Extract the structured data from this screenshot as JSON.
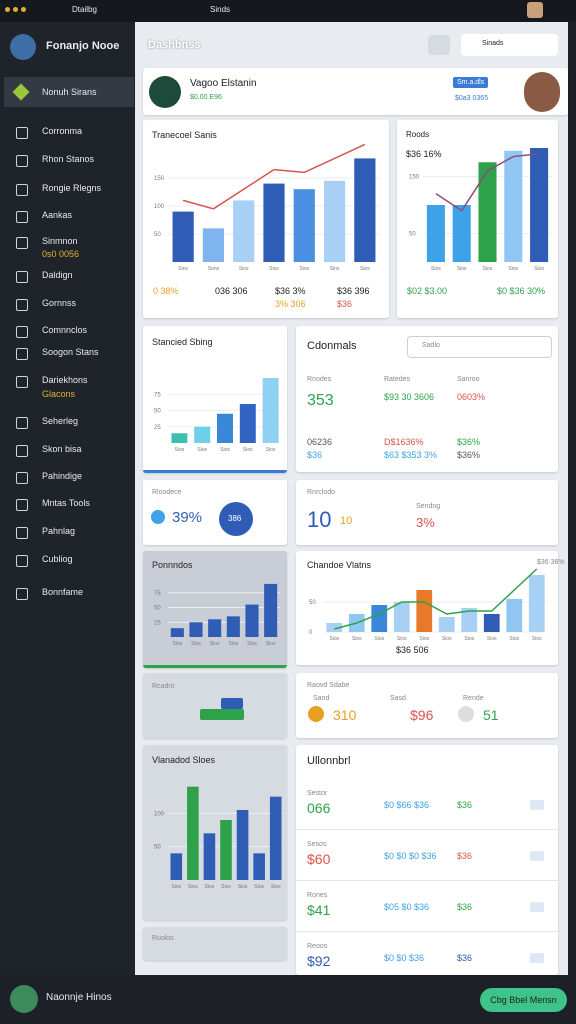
{
  "topbar": {
    "app": "Dtailbg",
    "center": "Sinds"
  },
  "sidebar": {
    "user": "Fonanjo Nooe",
    "active": "Nonuh Sirans",
    "items": [
      "Corronma",
      "Rhon Stanos",
      "Rongie Rlegns",
      "Aankas",
      "Sinmnon",
      "0s0 0056",
      "Daldign",
      "Gornnss",
      "Comnnclos",
      "Soogon Stans",
      "Dariekhons",
      "Glacons",
      "Seherleg",
      "Skon bisa",
      "Pahindige",
      "Mntas Tools",
      "Pahnlag",
      "Cubliog",
      "Bonnfame"
    ]
  },
  "header": {
    "title": "Dashbnss",
    "search": "Sinads"
  },
  "profile": {
    "name": "Vagoo Elstanin",
    "subtitle": "$0.00 E96",
    "badge": "Sm.a.dls",
    "badge2": "$0a3 0365"
  },
  "charts": [
    {
      "title": "Tranecoel Sanis",
      "ylim": [
        0,
        200
      ],
      "yticks": [
        50,
        100,
        150
      ],
      "categories": [
        "Sins",
        "Sons",
        "Sios",
        "Sins",
        "Sios",
        "Sins",
        "Sios"
      ],
      "values": [
        90,
        60,
        110,
        140,
        130,
        145,
        185
      ],
      "colors": [
        "#2f5db5",
        "#7fb4ee",
        "#a8d0f5",
        "#2f5db5",
        "#4b8fe0",
        "#a8d0f5",
        "#2f5db5"
      ],
      "line": [
        110,
        95,
        130,
        165,
        160,
        185,
        210
      ],
      "line_color": "#d9534f"
    },
    {
      "title": "Roods",
      "subtitle": "$36 16%",
      "ylim": [
        0,
        200
      ],
      "yticks": [
        50,
        150
      ],
      "categories": [
        "Sios",
        "Sios",
        "Sios",
        "Sios",
        "Sios"
      ],
      "values": [
        100,
        100,
        175,
        195,
        200
      ],
      "colors": [
        "#3ea2e8",
        "#3ea2e8",
        "#2ea24a",
        "#8fc7f2",
        "#2f5db5"
      ],
      "line": [
        120,
        90,
        160,
        185,
        190
      ],
      "line_color": "#8e4a7a"
    },
    {
      "title": "Stancied Sbing",
      "ylim": [
        0,
        100
      ],
      "yticks": [
        25,
        50,
        75
      ],
      "categories": [
        "Sios",
        "Sios",
        "Sios",
        "Sios",
        "Sios"
      ],
      "values": [
        15,
        25,
        45,
        60,
        100
      ],
      "colors": [
        "#3fbfb0",
        "#6cd1e8",
        "#3a86d8",
        "#3363c2",
        "#8fd0f5"
      ]
    },
    {
      "title": "Ponnndos",
      "ylim": [
        0,
        100
      ],
      "yticks": [
        25,
        50,
        75
      ],
      "categories": [
        "Sios",
        "Sios",
        "Sios",
        "Sios",
        "Sios",
        "Sios"
      ],
      "values": [
        15,
        25,
        30,
        35,
        55,
        90
      ],
      "colors": [
        "#2f5db5",
        "#2f5db5",
        "#2f5db5",
        "#2f5db5",
        "#2f5db5",
        "#2f5db5"
      ]
    },
    {
      "title": "Chandoe Vlatns",
      "subtitle": "$36 36%",
      "ylim": [
        0,
        100
      ],
      "yticks": [
        0,
        50
      ],
      "categories": [
        "Sios",
        "Sios",
        "Sios",
        "Sios",
        "Sios",
        "Sios",
        "Sios",
        "Sios",
        "Sios",
        "Sios"
      ],
      "values": [
        15,
        30,
        45,
        50,
        70,
        25,
        40,
        30,
        55,
        95
      ],
      "colors": [
        "#a8d0f5",
        "#8fc7f2",
        "#3a86d8",
        "#a8d0f5",
        "#e8792a",
        "#a8d0f5",
        "#a8d0f5",
        "#2f5db5",
        "#8fc7f2",
        "#a8d0f5"
      ],
      "line": [
        5,
        15,
        30,
        50,
        50,
        30,
        35,
        35,
        70,
        105
      ],
      "line_color": "#2ea24a"
    },
    {
      "title": "Vlanadod Sloes",
      "ylim": [
        0,
        150
      ],
      "yticks": [
        50,
        100
      ],
      "categories": [
        "Sios",
        "Sios",
        "Sios",
        "Sios",
        "Sios",
        "Sios",
        "Sios"
      ],
      "values": [
        40,
        140,
        70,
        90,
        105,
        40,
        125
      ],
      "colors": [
        "#2f5db5",
        "#2ea24a",
        "#2f5db5",
        "#2ea24a",
        "#2f5db5",
        "#2f5db5",
        "#2f5db5"
      ]
    }
  ],
  "chart_stats": {
    "first": [
      "0 38%",
      "036 306",
      "$36 3%",
      "3% 306",
      "$36 396",
      "$36"
    ],
    "second": [
      "$02 $3.00",
      "$0 $36 30%"
    ],
    "bottom": "$36 506"
  },
  "columns": {
    "title": "Cdonmals",
    "search": "Sadlo",
    "head": [
      "Rnodes",
      "Ratedes",
      "Sanroo"
    ],
    "rows": [
      [
        "353",
        "$93 30 3606",
        "0603%"
      ],
      [
        "06236",
        "D$1636%",
        "$36%"
      ],
      [
        "$36",
        "$63 $353 3%",
        "$36%"
      ]
    ]
  },
  "ring": {
    "label": "Rloodece",
    "value": "39%",
    "center": "386"
  },
  "metric": {
    "label": "Rnrclodo",
    "value": "10",
    "small": "10",
    "label2": "Sendng",
    "value2": "3%"
  },
  "small_card": {
    "label": "Rcadro"
  },
  "summary": {
    "title": "Raovd Sdabe",
    "items": [
      {
        "label": "Sand",
        "value": "310"
      },
      {
        "label": "Sasd",
        "value": "$96"
      },
      {
        "label": "Rende",
        "value": "51"
      }
    ]
  },
  "list": {
    "title": "Ullonnbrl",
    "rows": [
      [
        "Sestor",
        "066",
        "$0 $66 $36",
        "$36"
      ],
      [
        "Sesos",
        "$60",
        "$0 $0 $0 $36",
        "$36"
      ],
      [
        "Rones",
        "$41",
        "$05 $0 $36",
        "$36"
      ],
      [
        "Reoos",
        "$92",
        "$0 $0 $36",
        "$36"
      ]
    ]
  },
  "bottom_card": {
    "label": "Ruolos"
  },
  "footer": {
    "user": "Naonnje Hinos",
    "button": "Cbg Bbel Mensn"
  }
}
